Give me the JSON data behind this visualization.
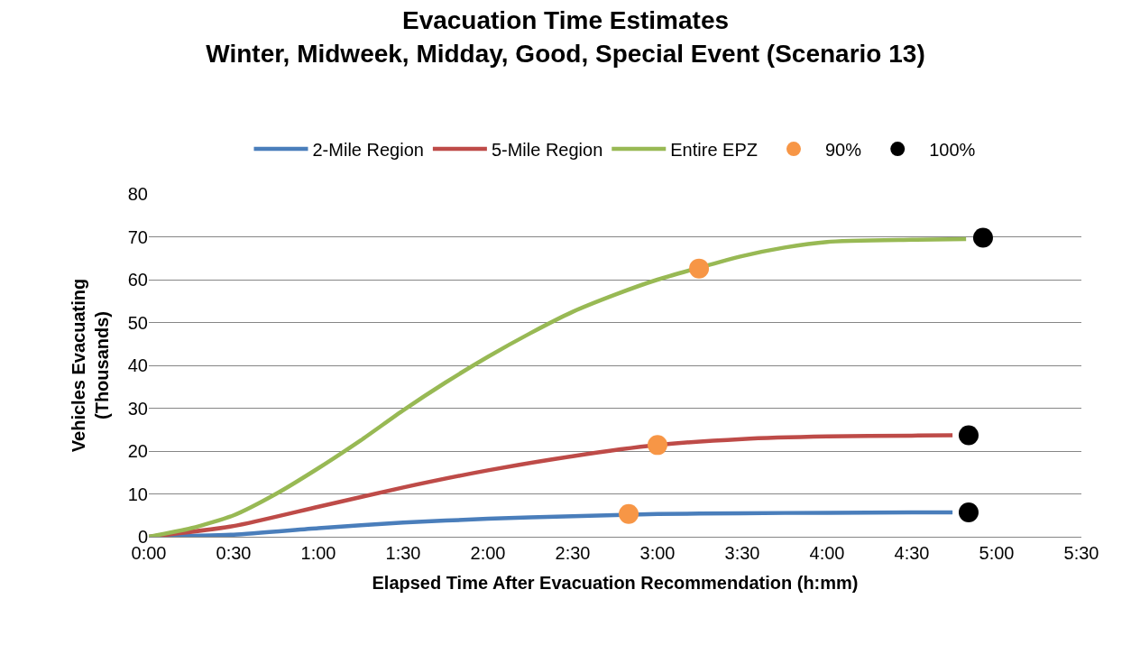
{
  "chart_data": {
    "type": "line",
    "title": "Evacuation Time Estimates\nWinter, Midweek, Midday, Good, Special Event (Scenario 13)",
    "xlabel": "Elapsed Time After Evacuation Recommendation (h:mm)",
    "ylabel": "Vehicles Evacuating\n(Thousands)",
    "xlim": [
      0,
      5.5
    ],
    "xticks": [
      {
        "value": 0,
        "label": "0:00"
      },
      {
        "value": 0.5,
        "label": "0:30"
      },
      {
        "value": 1,
        "label": "1:00"
      },
      {
        "value": 1.5,
        "label": "1:30"
      },
      {
        "value": 2,
        "label": "2:00"
      },
      {
        "value": 2.5,
        "label": "2:30"
      },
      {
        "value": 3,
        "label": "3:00"
      },
      {
        "value": 3.5,
        "label": "3:30"
      },
      {
        "value": 4,
        "label": "4:00"
      },
      {
        "value": 4.5,
        "label": "4:30"
      },
      {
        "value": 5,
        "label": "5:00"
      },
      {
        "value": 5.5,
        "label": "5:30"
      }
    ],
    "ylim": [
      0,
      80
    ],
    "yticks": [
      0,
      10,
      20,
      30,
      40,
      50,
      60,
      70,
      80
    ],
    "grid": "y",
    "legend": "top",
    "marker": "none",
    "line_style": "solid",
    "series": [
      {
        "name": "2-Mile Region",
        "color": "#4a7ebb",
        "x": [
          0,
          0.5,
          1,
          1.5,
          2,
          2.5,
          3,
          3.5,
          4,
          4.5,
          4.74
        ],
        "values": [
          0,
          0.5,
          2,
          3.3,
          4.2,
          4.8,
          5.3,
          5.5,
          5.6,
          5.7,
          5.7
        ]
      },
      {
        "name": "5-Mile Region",
        "color": "#be4b48",
        "x": [
          0,
          0.5,
          1,
          1.5,
          2,
          2.5,
          3,
          3.5,
          4,
          4.5,
          4.74
        ],
        "values": [
          0,
          2.5,
          7,
          11.5,
          15.5,
          18.8,
          21.4,
          22.8,
          23.4,
          23.6,
          23.7
        ]
      },
      {
        "name": "Entire EPZ",
        "color": "#98b954",
        "x": [
          0,
          0.25,
          0.5,
          0.75,
          1,
          1.25,
          1.5,
          1.75,
          2,
          2.25,
          2.5,
          2.75,
          3,
          3.5,
          3.75,
          4,
          4.5,
          4.82
        ],
        "values": [
          0,
          2,
          5,
          10,
          16,
          22.5,
          29.5,
          36,
          42,
          47.5,
          52.5,
          56.5,
          60,
          65.5,
          67.5,
          68.8,
          69.3,
          69.5
        ]
      },
      {
        "name": "90%",
        "type": "scatter",
        "marker": "circle",
        "color": "#f79646",
        "x": [
          2.83,
          3.0,
          3.245
        ],
        "values": [
          5.3,
          21.4,
          62.6
        ]
      },
      {
        "name": "100%",
        "type": "scatter",
        "marker": "circle",
        "color": "#000000",
        "x": [
          4.835,
          4.835,
          4.92
        ],
        "values": [
          5.7,
          23.7,
          69.8
        ]
      }
    ]
  }
}
